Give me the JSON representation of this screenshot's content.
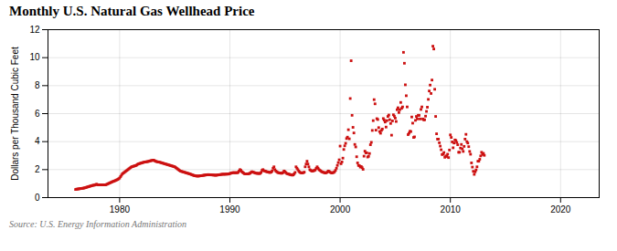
{
  "chart_data": {
    "type": "scatter",
    "title": "Monthly U.S. Natural Gas Wellhead Price",
    "ylabel": "Dollars per Thousand Cubic Feet",
    "source": "Source: U.S. Energy Information Administration",
    "color": "#cc1111",
    "marker": "square",
    "grid": true,
    "xlim": [
      1973.5,
      2023.5
    ],
    "ylim": [
      0,
      12
    ],
    "xticks": [
      1980,
      1990,
      2000,
      2010,
      2020
    ],
    "yticks": [
      0,
      2,
      4,
      6,
      8,
      10,
      12
    ],
    "x": [
      1976.0,
      1976.083,
      1976.167,
      1976.25,
      1976.333,
      1976.417,
      1976.5,
      1976.583,
      1976.667,
      1976.75,
      1976.833,
      1976.917,
      1977.0,
      1977.083,
      1977.167,
      1977.25,
      1977.333,
      1977.417,
      1977.5,
      1977.583,
      1977.667,
      1977.75,
      1977.833,
      1977.917,
      1978.0,
      1978.083,
      1978.167,
      1978.25,
      1978.333,
      1978.417,
      1978.5,
      1978.583,
      1978.667,
      1978.75,
      1978.833,
      1978.917,
      1979.0,
      1979.083,
      1979.167,
      1979.25,
      1979.333,
      1979.417,
      1979.5,
      1979.583,
      1979.667,
      1979.75,
      1979.833,
      1979.917,
      1980.0,
      1980.083,
      1980.167,
      1980.25,
      1980.333,
      1980.417,
      1980.5,
      1980.583,
      1980.667,
      1980.75,
      1980.833,
      1980.917,
      1981.0,
      1981.083,
      1981.167,
      1981.25,
      1981.333,
      1981.417,
      1981.5,
      1981.583,
      1981.667,
      1981.75,
      1981.833,
      1981.917,
      1982.0,
      1982.083,
      1982.167,
      1982.25,
      1982.333,
      1982.417,
      1982.5,
      1982.583,
      1982.667,
      1982.75,
      1982.833,
      1982.917,
      1983.0,
      1983.083,
      1983.167,
      1983.25,
      1983.333,
      1983.417,
      1983.5,
      1983.583,
      1983.667,
      1983.75,
      1983.833,
      1983.917,
      1984.0,
      1984.083,
      1984.167,
      1984.25,
      1984.333,
      1984.417,
      1984.5,
      1984.583,
      1984.667,
      1984.75,
      1984.833,
      1984.917,
      1985.0,
      1985.083,
      1985.167,
      1985.25,
      1985.333,
      1985.417,
      1985.5,
      1985.583,
      1985.667,
      1985.75,
      1985.833,
      1985.917,
      1986.0,
      1986.083,
      1986.167,
      1986.25,
      1986.333,
      1986.417,
      1986.5,
      1986.583,
      1986.667,
      1986.75,
      1986.833,
      1986.917,
      1987.0,
      1987.083,
      1987.167,
      1987.25,
      1987.333,
      1987.417,
      1987.5,
      1987.583,
      1987.667,
      1987.75,
      1987.833,
      1987.917,
      1988.0,
      1988.083,
      1988.167,
      1988.25,
      1988.333,
      1988.417,
      1988.5,
      1988.583,
      1988.667,
      1988.75,
      1988.833,
      1988.917,
      1989.0,
      1989.083,
      1989.167,
      1989.25,
      1989.333,
      1989.417,
      1989.5,
      1989.583,
      1989.667,
      1989.75,
      1989.833,
      1989.917,
      1990.0,
      1990.083,
      1990.167,
      1990.25,
      1990.333,
      1990.417,
      1990.5,
      1990.583,
      1990.667,
      1990.75,
      1990.833,
      1990.917,
      1991.0,
      1991.083,
      1991.167,
      1991.25,
      1991.333,
      1991.417,
      1991.5,
      1991.583,
      1991.667,
      1991.75,
      1991.833,
      1991.917,
      1992.0,
      1992.083,
      1992.167,
      1992.25,
      1992.333,
      1992.417,
      1992.5,
      1992.583,
      1992.667,
      1992.75,
      1992.833,
      1992.917,
      1993.0,
      1993.083,
      1993.167,
      1993.25,
      1993.333,
      1993.417,
      1993.5,
      1993.583,
      1993.667,
      1993.75,
      1993.833,
      1993.917,
      1994.0,
      1994.083,
      1994.167,
      1994.25,
      1994.333,
      1994.417,
      1994.5,
      1994.583,
      1994.667,
      1994.75,
      1994.833,
      1994.917,
      1995.0,
      1995.083,
      1995.167,
      1995.25,
      1995.333,
      1995.417,
      1995.5,
      1995.583,
      1995.667,
      1995.75,
      1995.833,
      1995.917,
      1996.0,
      1996.083,
      1996.167,
      1996.25,
      1996.333,
      1996.417,
      1996.5,
      1996.583,
      1996.667,
      1996.75,
      1996.833,
      1996.917,
      1997.0,
      1997.083,
      1997.167,
      1997.25,
      1997.333,
      1997.417,
      1997.5,
      1997.583,
      1997.667,
      1997.75,
      1997.833,
      1997.917,
      1998.0,
      1998.083,
      1998.167,
      1998.25,
      1998.333,
      1998.417,
      1998.5,
      1998.583,
      1998.667,
      1998.75,
      1998.833,
      1998.917,
      1999.0,
      1999.083,
      1999.167,
      1999.25,
      1999.333,
      1999.417,
      1999.5,
      1999.583,
      1999.667,
      1999.75,
      1999.833,
      1999.917,
      2000.0,
      2000.083,
      2000.167,
      2000.25,
      2000.333,
      2000.417,
      2000.5,
      2000.583,
      2000.667,
      2000.75,
      2000.833,
      2000.917,
      2001.0,
      2001.083,
      2001.167,
      2001.25,
      2001.333,
      2001.417,
      2001.5,
      2001.583,
      2001.667,
      2001.75,
      2001.833,
      2001.917,
      2002.0,
      2002.083,
      2002.167,
      2002.25,
      2002.333,
      2002.417,
      2002.5,
      2002.583,
      2002.667,
      2002.75,
      2002.833,
      2002.917,
      2003.0,
      2003.083,
      2003.167,
      2003.25,
      2003.333,
      2003.417,
      2003.5,
      2003.583,
      2003.667,
      2003.75,
      2003.833,
      2003.917,
      2004.0,
      2004.083,
      2004.167,
      2004.25,
      2004.333,
      2004.417,
      2004.5,
      2004.583,
      2004.667,
      2004.75,
      2004.833,
      2004.917,
      2005.0,
      2005.083,
      2005.167,
      2005.25,
      2005.333,
      2005.417,
      2005.5,
      2005.583,
      2005.667,
      2005.75,
      2005.833,
      2005.917,
      2006.0,
      2006.083,
      2006.167,
      2006.25,
      2006.333,
      2006.417,
      2006.5,
      2006.583,
      2006.667,
      2006.75,
      2006.833,
      2006.917,
      2007.0,
      2007.083,
      2007.167,
      2007.25,
      2007.333,
      2007.417,
      2007.5,
      2007.583,
      2007.667,
      2007.75,
      2007.833,
      2007.917,
      2008.0,
      2008.083,
      2008.167,
      2008.25,
      2008.333,
      2008.417,
      2008.5,
      2008.583,
      2008.667,
      2008.75,
      2008.833,
      2008.917,
      2009.0,
      2009.083,
      2009.167,
      2009.25,
      2009.333,
      2009.417,
      2009.5,
      2009.583,
      2009.667,
      2009.75,
      2009.833,
      2009.917,
      2010.0,
      2010.083,
      2010.167,
      2010.25,
      2010.333,
      2010.417,
      2010.5,
      2010.583,
      2010.667,
      2010.75,
      2010.833,
      2010.917,
      2011.0,
      2011.083,
      2011.167,
      2011.25,
      2011.333,
      2011.417,
      2011.5,
      2011.583,
      2011.667,
      2011.75,
      2011.833,
      2011.917,
      2012.0,
      2012.083,
      2012.167,
      2012.25,
      2012.333,
      2012.417,
      2012.5,
      2012.583,
      2012.667,
      2012.75,
      2012.833,
      2012.917,
      2013.0,
      2013.083
    ],
    "values": [
      0.58,
      0.6,
      0.61,
      0.62,
      0.63,
      0.64,
      0.65,
      0.66,
      0.67,
      0.68,
      0.7,
      0.71,
      0.74,
      0.76,
      0.78,
      0.8,
      0.82,
      0.84,
      0.86,
      0.88,
      0.89,
      0.9,
      0.93,
      0.96,
      0.91,
      0.91,
      0.91,
      0.91,
      0.91,
      0.91,
      0.91,
      0.91,
      0.91,
      0.92,
      0.95,
      0.98,
      1.01,
      1.04,
      1.07,
      1.1,
      1.13,
      1.16,
      1.18,
      1.21,
      1.24,
      1.27,
      1.3,
      1.35,
      1.4,
      1.5,
      1.6,
      1.7,
      1.75,
      1.8,
      1.85,
      1.9,
      1.95,
      2.0,
      2.05,
      2.1,
      2.15,
      2.2,
      2.22,
      2.24,
      2.26,
      2.28,
      2.3,
      2.35,
      2.4,
      2.42,
      2.44,
      2.46,
      2.48,
      2.5,
      2.52,
      2.54,
      2.55,
      2.56,
      2.57,
      2.58,
      2.6,
      2.62,
      2.64,
      2.65,
      2.67,
      2.68,
      2.64,
      2.6,
      2.58,
      2.56,
      2.55,
      2.54,
      2.52,
      2.5,
      2.48,
      2.46,
      2.44,
      2.42,
      2.4,
      2.38,
      2.36,
      2.34,
      2.32,
      2.3,
      2.28,
      2.26,
      2.24,
      2.22,
      2.2,
      2.15,
      2.1,
      2.05,
      2.0,
      1.95,
      1.9,
      1.88,
      1.86,
      1.84,
      1.82,
      1.8,
      1.78,
      1.76,
      1.74,
      1.72,
      1.7,
      1.68,
      1.65,
      1.63,
      1.6,
      1.58,
      1.56,
      1.55,
      1.54,
      1.54,
      1.54,
      1.55,
      1.56,
      1.57,
      1.58,
      1.59,
      1.6,
      1.61,
      1.62,
      1.63,
      1.64,
      1.64,
      1.63,
      1.63,
      1.62,
      1.62,
      1.61,
      1.61,
      1.6,
      1.6,
      1.61,
      1.62,
      1.63,
      1.64,
      1.65,
      1.66,
      1.67,
      1.67,
      1.67,
      1.67,
      1.68,
      1.68,
      1.68,
      1.7,
      1.72,
      1.74,
      1.76,
      1.78,
      1.78,
      1.78,
      1.78,
      1.78,
      1.78,
      1.8,
      1.9,
      2.0,
      1.95,
      1.85,
      1.8,
      1.75,
      1.7,
      1.7,
      1.7,
      1.7,
      1.7,
      1.72,
      1.74,
      1.8,
      1.85,
      1.82,
      1.8,
      1.78,
      1.75,
      1.74,
      1.73,
      1.73,
      1.72,
      1.73,
      1.8,
      1.95,
      2.0,
      1.92,
      1.9,
      1.88,
      1.85,
      1.84,
      1.82,
      1.8,
      1.8,
      1.82,
      1.9,
      2.1,
      2.2,
      2.0,
      1.9,
      1.85,
      1.8,
      1.78,
      1.76,
      1.75,
      1.74,
      1.75,
      1.8,
      1.9,
      1.85,
      1.78,
      1.72,
      1.7,
      1.68,
      1.66,
      1.64,
      1.62,
      1.61,
      1.62,
      1.7,
      1.8,
      2.2,
      2.1,
      2.0,
      1.9,
      1.82,
      1.78,
      1.76,
      1.77,
      1.78,
      1.82,
      2.2,
      2.4,
      2.6,
      2.4,
      2.2,
      2.0,
      1.95,
      1.9,
      1.9,
      1.92,
      1.94,
      1.98,
      2.1,
      2.2,
      2.1,
      2.0,
      1.95,
      1.9,
      1.85,
      1.82,
      1.8,
      1.78,
      1.76,
      1.78,
      1.82,
      1.9,
      1.88,
      1.82,
      1.78,
      1.76,
      1.78,
      1.8,
      1.85,
      1.95,
      2.1,
      2.3,
      2.5,
      2.7,
      3.68,
      2.42,
      2.55,
      2.82,
      3.44,
      3.7,
      3.88,
      4.22,
      4.32,
      4.85,
      4.2,
      7.08,
      9.78,
      5.88,
      5.02,
      4.62,
      3.8,
      3.62,
      2.92,
      2.48,
      2.3,
      2.28,
      2.18,
      2.22,
      2.14,
      2.02,
      2.96,
      3.32,
      3.2,
      3.2,
      2.9,
      2.95,
      3.15,
      3.78,
      3.95,
      4.8,
      5.5,
      7.0,
      6.7,
      4.82,
      5.64,
      5.58,
      5.0,
      4.72,
      4.6,
      4.8,
      4.9,
      5.65,
      5.54,
      5.4,
      5.04,
      5.5,
      5.8,
      5.9,
      5.57,
      5.3,
      4.46,
      5.48,
      5.92,
      5.82,
      5.68,
      5.44,
      6.28,
      6.42,
      6.08,
      6.28,
      6.8,
      6.38,
      6.48,
      10.38,
      9.6,
      8.06,
      7.28,
      6.48,
      4.5,
      4.6,
      4.74,
      4.72,
      5.76,
      5.32,
      4.3,
      4.34,
      5.52,
      5.8,
      5.62,
      5.88,
      5.88,
      5.62,
      6.3,
      6.48,
      5.62,
      5.56,
      5.56,
      5.82,
      6.16,
      6.46,
      7.02,
      7.62,
      8.04,
      7.44,
      8.4,
      10.82,
      10.62,
      7.74,
      5.8,
      4.56,
      4.18,
      4.18,
      3.92,
      3.68,
      3.42,
      3.08,
      3.1,
      3.22,
      2.88,
      2.98,
      2.94,
      3.1,
      2.86,
      3.4,
      4.48,
      4.3,
      3.98,
      3.56,
      3.9,
      4.12,
      4.08,
      3.94,
      3.78,
      3.24,
      3.24,
      3.54,
      3.8,
      3.48,
      3.3,
      3.66,
      4.18,
      4.52,
      4.0,
      3.9,
      3.64,
      3.3,
      3.1,
      2.48,
      2.18,
      1.88,
      1.66,
      1.84,
      1.98,
      2.2,
      2.6,
      2.6,
      2.74,
      2.98,
      3.24,
      3.08,
      3.16,
      3.02
    ]
  }
}
